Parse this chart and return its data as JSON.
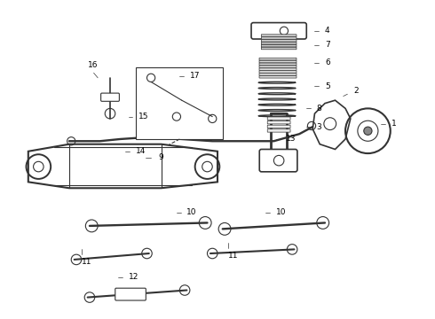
{
  "title": "",
  "background_color": "#ffffff",
  "line_color": "#333333",
  "label_color": "#000000",
  "fig_width": 4.9,
  "fig_height": 3.6,
  "dpi": 100
}
